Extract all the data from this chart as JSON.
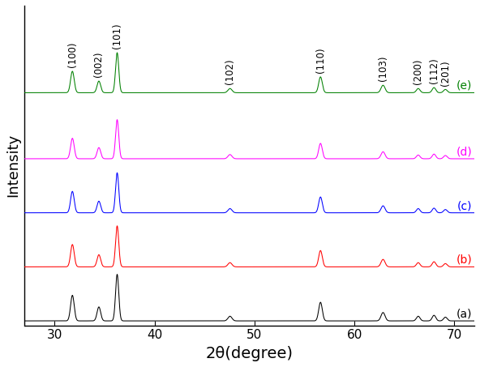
{
  "xlabel": "2θ(degree)",
  "ylabel": "Intensity",
  "xlim": [
    27,
    72
  ],
  "background_color": "#ffffff",
  "colors": [
    "black",
    "red",
    "blue",
    "magenta",
    "green"
  ],
  "labels": [
    "(a)",
    "(b)",
    "(c)",
    "(d)",
    "(e)"
  ],
  "offsets": [
    0.0,
    0.18,
    0.36,
    0.54,
    0.76
  ],
  "peak_positions": [
    31.77,
    34.42,
    36.25,
    47.54,
    56.6,
    62.86,
    66.38,
    67.96,
    69.1
  ],
  "peak_widths": [
    0.18,
    0.18,
    0.16,
    0.2,
    0.18,
    0.2,
    0.18,
    0.18,
    0.18
  ],
  "peak_heights_a": [
    0.55,
    0.3,
    1.0,
    0.1,
    0.4,
    0.18,
    0.1,
    0.12,
    0.08
  ],
  "peak_heights_b": [
    0.48,
    0.26,
    0.88,
    0.09,
    0.35,
    0.16,
    0.09,
    0.11,
    0.07
  ],
  "peak_heights_c": [
    0.46,
    0.25,
    0.86,
    0.09,
    0.34,
    0.15,
    0.09,
    0.1,
    0.07
  ],
  "peak_heights_d": [
    0.44,
    0.24,
    0.84,
    0.09,
    0.33,
    0.15,
    0.08,
    0.1,
    0.07
  ],
  "peak_heights_e": [
    0.46,
    0.25,
    0.86,
    0.09,
    0.34,
    0.16,
    0.09,
    0.11,
    0.07
  ],
  "miller_indices": [
    "(100)",
    "(002)",
    "(101)",
    "(102)",
    "(110)",
    "(103)",
    "(200)",
    "(112)",
    "(201)"
  ],
  "curve_scale": 0.155,
  "xlabel_fontsize": 14,
  "ylabel_fontsize": 13,
  "tick_fontsize": 11,
  "label_fontsize": 10,
  "annot_fontsize": 8.5
}
